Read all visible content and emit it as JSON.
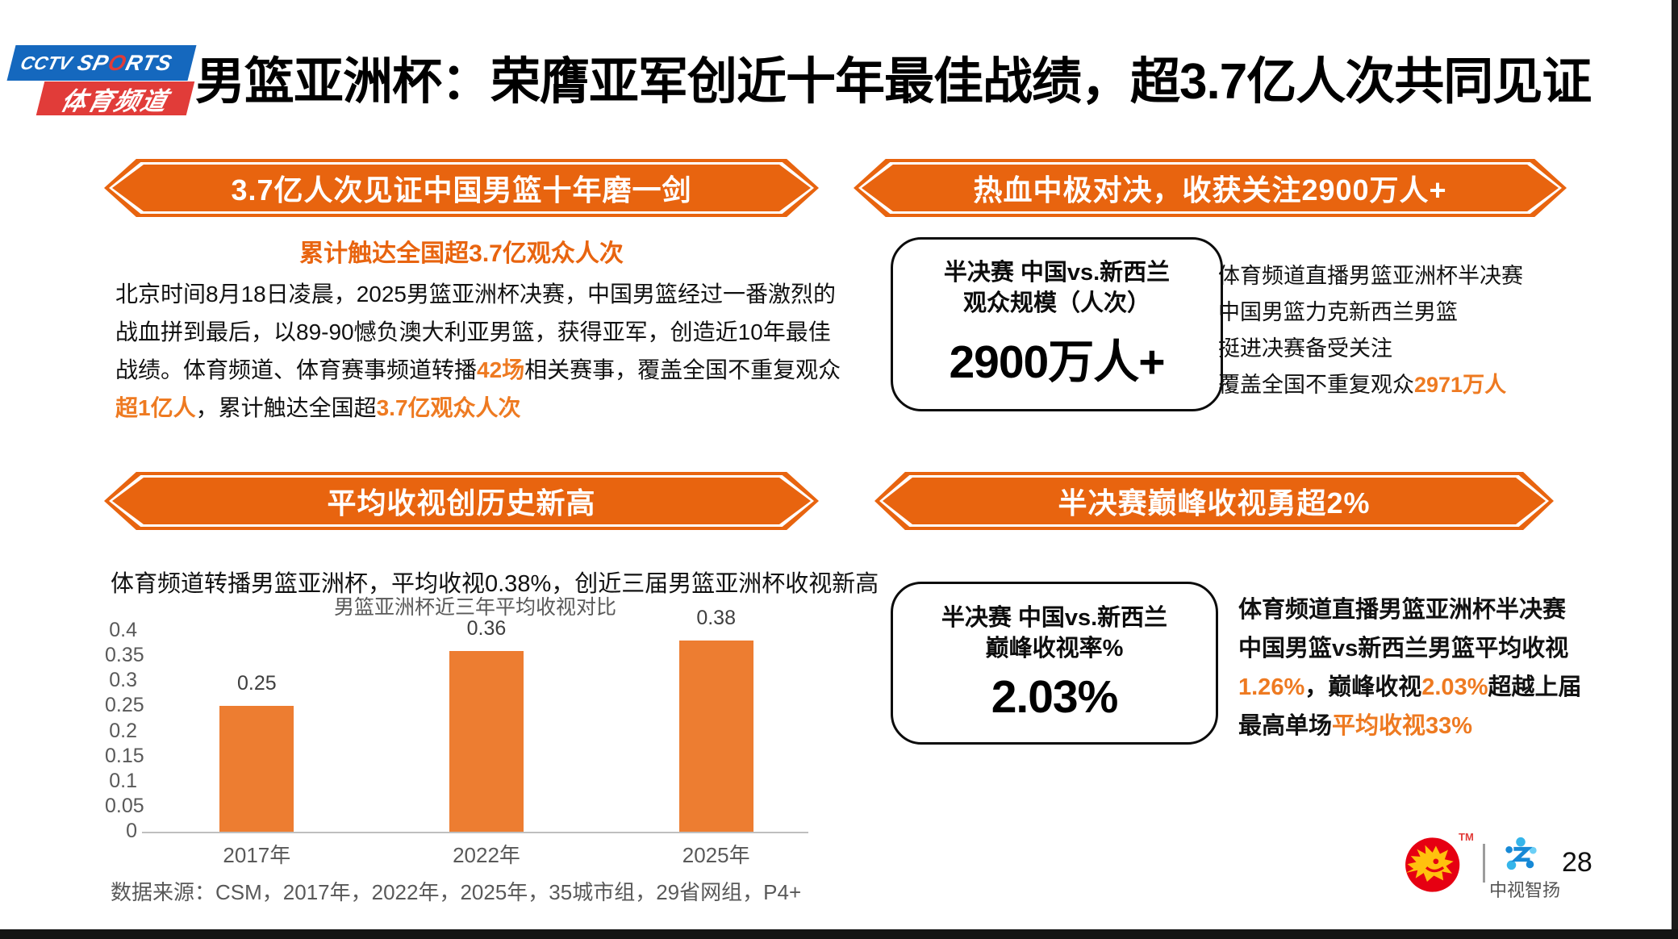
{
  "header": {
    "logo": {
      "cctv": "CCTV",
      "sports_1": "SP",
      "sports_o": "O",
      "sports_2": "RTS",
      "channel": "体育频道"
    },
    "title": "男篮亚洲杯：荣膺亚军创近十年最佳战绩，超3.7亿人次共同见证"
  },
  "sections": {
    "reach": {
      "banner": "3.7亿人次见证中国男篮十年磨一剑",
      "subtitle": "累计触达全国超3.7亿观众人次",
      "paragraph_lines": [
        [
          {
            "t": "北京时间8月18日凌晨，2025男篮亚洲杯决赛，中国男篮经过一番激烈的",
            "hl": false
          }
        ],
        [
          {
            "t": "战血拼到最后，以89-90憾负澳大利亚男篮，获得亚军，创造近10年最佳",
            "hl": false
          }
        ],
        [
          {
            "t": "战绩。体育频道、体育赛事频道转播",
            "hl": false
          },
          {
            "t": "42场",
            "hl": true
          },
          {
            "t": "相关赛事，覆盖全国不重复观众",
            "hl": false
          }
        ],
        [
          {
            "t": "超1亿人",
            "hl": true
          },
          {
            "t": "，累计触达全国超",
            "hl": false
          },
          {
            "t": "3.7亿观众人次",
            "hl": true
          }
        ]
      ]
    },
    "semifinal_audience": {
      "banner": "热血中极对决，收获关注2900万人+",
      "card": {
        "line1": "半决赛 中国vs.新西兰",
        "line2": "观众规模（人次）",
        "value": "2900万人+"
      },
      "bullets": [
        [
          {
            "t": "体育频道直播男篮亚洲杯半决赛",
            "hl": false
          }
        ],
        [
          {
            "t": "中国男篮力克新西兰男篮",
            "hl": false
          }
        ],
        [
          {
            "t": "挺进决赛备受关注",
            "hl": false
          }
        ],
        [
          {
            "t": "覆盖全国不重复观众",
            "hl": false
          },
          {
            "t": "2971万人",
            "hl": true
          }
        ]
      ]
    },
    "ratings": {
      "banner": "平均收视创历史新高",
      "lead": "体育频道转播男篮亚洲杯，平均收视0.38%，创近三届男篮亚洲杯收视新高",
      "source": "数据来源：CSM，2017年，2022年，2025年，35城市组，29省网组，P4+"
    },
    "peak": {
      "banner": "半决赛巅峰收视勇超2%",
      "card": {
        "line1": "半决赛 中国vs.新西兰",
        "line2": "巅峰收视率%",
        "value": "2.03%"
      },
      "bullets": [
        [
          {
            "t": "体育频道直播男篮亚洲杯半决赛",
            "hl": false
          }
        ],
        [
          {
            "t": "中国男篮vs新西兰男篮平均收视",
            "hl": false
          }
        ],
        [
          {
            "t": "1.26%",
            "hl": true
          },
          {
            "t": "，巅峰收视",
            "hl": false
          },
          {
            "t": "2.03%",
            "hl": true
          },
          {
            "t": "超越上届",
            "hl": false
          }
        ],
        [
          {
            "t": "最高单场",
            "hl": false
          },
          {
            "t": "平均收视33%",
            "hl": true
          }
        ]
      ]
    }
  },
  "chart_data": {
    "type": "bar",
    "title": "男篮亚洲杯近三年平均收视对比",
    "categories": [
      "2017年",
      "2022年",
      "2025年"
    ],
    "values": [
      0.25,
      0.36,
      0.38
    ],
    "xlabel": "",
    "ylabel": "",
    "ylim": [
      0,
      0.4
    ],
    "ytick_step": 0.05,
    "grid": false,
    "legend": "none",
    "bar_color": "#ED7D31"
  },
  "footer": {
    "tm": "TM",
    "brand_name": "中视智扬",
    "page_number": "28"
  },
  "colors": {
    "banner_orange": "#E8640F",
    "highlight_orange": "#EE7A21",
    "bar_orange": "#ED7D31",
    "logo_blue": "#1568BE",
    "logo_red": "#E13C39",
    "lion_red": "#E60012",
    "lion_gold": "#FFC10E"
  }
}
